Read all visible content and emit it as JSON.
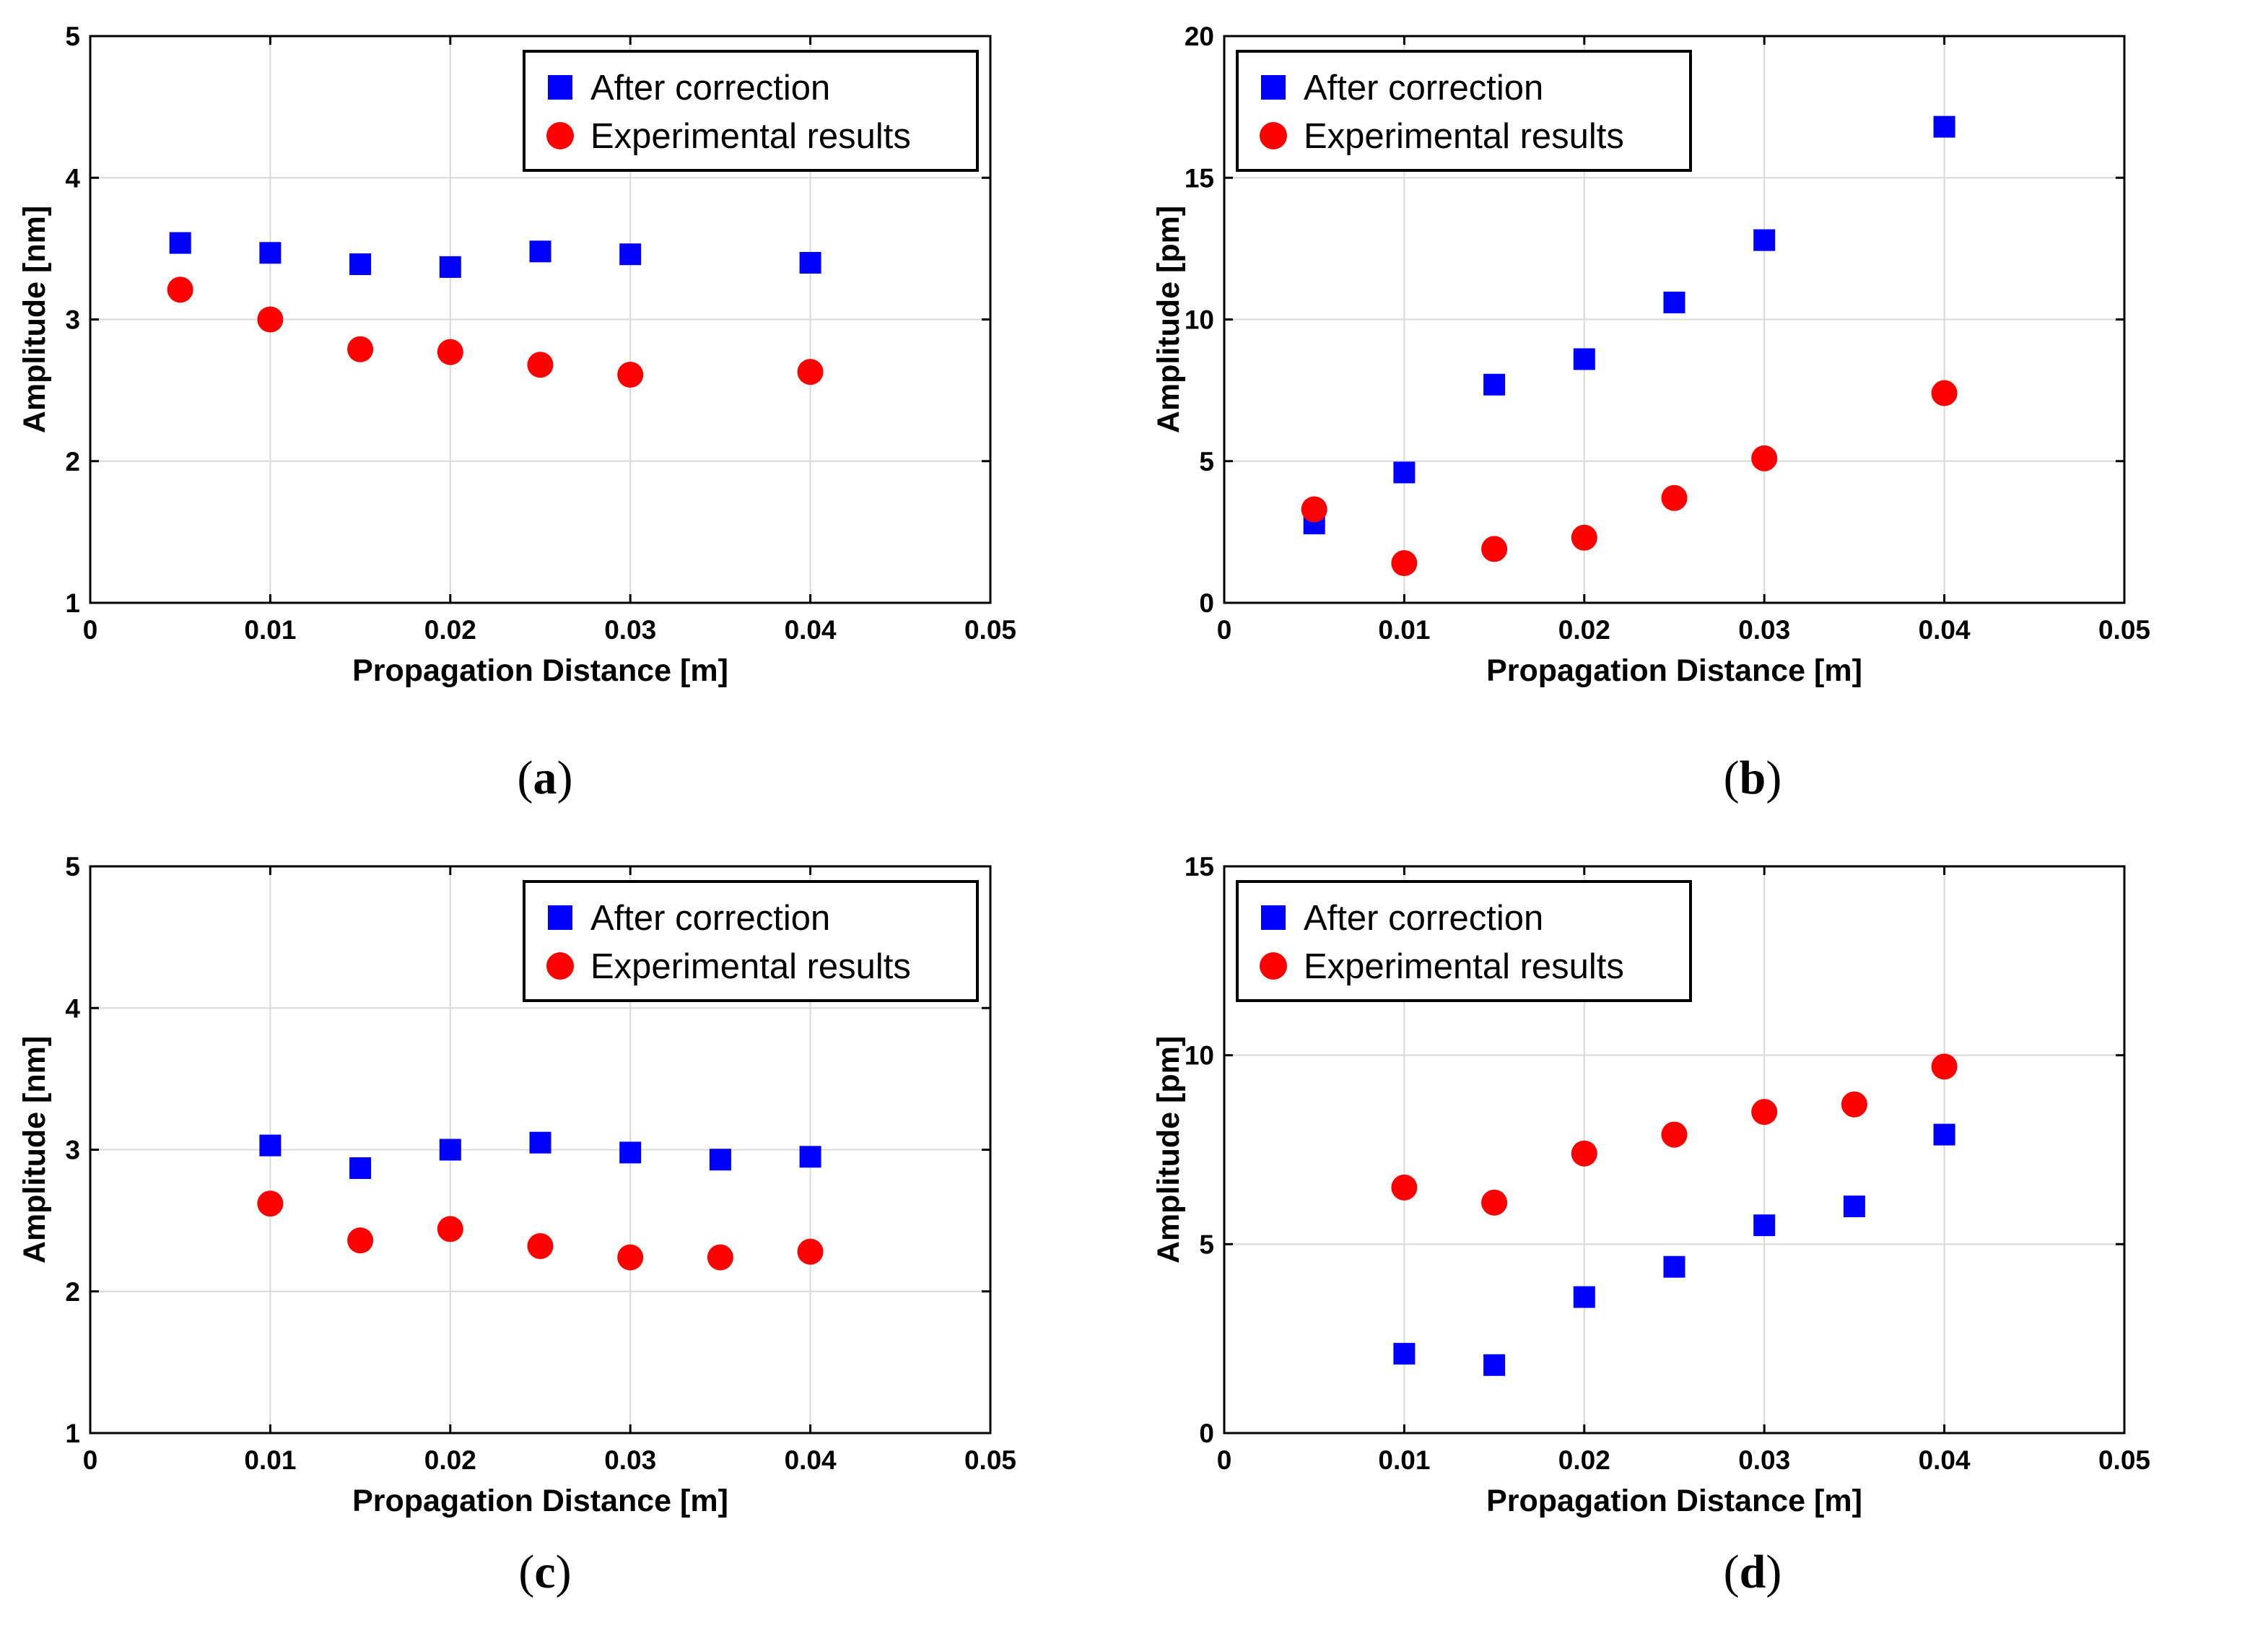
{
  "colors": {
    "series_after": "#0000ff",
    "series_experimental": "#ff0000",
    "grid": "#d9d9d9",
    "axis": "#000000"
  },
  "chart_data": [
    {
      "id": "a",
      "type": "scatter",
      "caption": "a",
      "xlabel": "Propagation Distance [m]",
      "ylabel": "Amplitude [nm]",
      "xlim": [
        0,
        0.05
      ],
      "ylim": [
        1,
        5
      ],
      "xticks": [
        "0",
        "0.01",
        "0.02",
        "0.03",
        "0.04",
        "0.05"
      ],
      "xtick_values": [
        0,
        0.01,
        0.02,
        0.03,
        0.04,
        0.05
      ],
      "yticks": [
        "1",
        "2",
        "3",
        "4",
        "5"
      ],
      "ytick_values": [
        1,
        2,
        3,
        4,
        5
      ],
      "grid": true,
      "legend_position": "top-right",
      "series": [
        {
          "name": "After correction",
          "marker": "square",
          "color": "#0000ff",
          "x": [
            0.005,
            0.01,
            0.015,
            0.02,
            0.025,
            0.03,
            0.04
          ],
          "y": [
            3.54,
            3.47,
            3.39,
            3.37,
            3.48,
            3.46,
            3.4
          ]
        },
        {
          "name": "Experimental results",
          "marker": "circle",
          "color": "#ff0000",
          "x": [
            0.005,
            0.01,
            0.015,
            0.02,
            0.025,
            0.03,
            0.04
          ],
          "y": [
            3.21,
            3.0,
            2.79,
            2.77,
            2.68,
            2.61,
            2.63
          ]
        }
      ]
    },
    {
      "id": "b",
      "type": "scatter",
      "caption": "b",
      "xlabel": "Propagation Distance [m]",
      "ylabel": "Amplitude [pm]",
      "xlim": [
        0,
        0.05
      ],
      "ylim": [
        0,
        20
      ],
      "xticks": [
        "0",
        "0.01",
        "0.02",
        "0.03",
        "0.04",
        "0.05"
      ],
      "xtick_values": [
        0,
        0.01,
        0.02,
        0.03,
        0.04,
        0.05
      ],
      "yticks": [
        "0",
        "5",
        "10",
        "15",
        "20"
      ],
      "ytick_values": [
        0,
        5,
        10,
        15,
        20
      ],
      "grid": true,
      "legend_position": "top-left",
      "series": [
        {
          "name": "After correction",
          "marker": "square",
          "color": "#0000ff",
          "x": [
            0.005,
            0.01,
            0.015,
            0.02,
            0.025,
            0.03,
            0.04
          ],
          "y": [
            2.8,
            4.6,
            7.7,
            8.6,
            10.6,
            12.8,
            16.8
          ]
        },
        {
          "name": "Experimental results",
          "marker": "circle",
          "color": "#ff0000",
          "x": [
            0.005,
            0.01,
            0.015,
            0.02,
            0.025,
            0.03,
            0.04
          ],
          "y": [
            3.3,
            1.4,
            1.9,
            2.3,
            3.7,
            5.1,
            7.4
          ]
        }
      ]
    },
    {
      "id": "c",
      "type": "scatter",
      "caption": "c",
      "xlabel": "Propagation Distance [m]",
      "ylabel": "Amplitude [nm]",
      "xlim": [
        0,
        0.05
      ],
      "ylim": [
        1,
        5
      ],
      "xticks": [
        "0",
        "0.01",
        "0.02",
        "0.03",
        "0.04",
        "0.05"
      ],
      "xtick_values": [
        0,
        0.01,
        0.02,
        0.03,
        0.04,
        0.05
      ],
      "yticks": [
        "1",
        "2",
        "3",
        "4",
        "5"
      ],
      "ytick_values": [
        1,
        2,
        3,
        4,
        5
      ],
      "grid": true,
      "legend_position": "top-right",
      "series": [
        {
          "name": "After correction",
          "marker": "square",
          "color": "#0000ff",
          "x": [
            0.01,
            0.015,
            0.02,
            0.025,
            0.03,
            0.035,
            0.04
          ],
          "y": [
            3.03,
            2.87,
            3.0,
            3.05,
            2.98,
            2.93,
            2.95
          ]
        },
        {
          "name": "Experimental results",
          "marker": "circle",
          "color": "#ff0000",
          "x": [
            0.01,
            0.015,
            0.02,
            0.025,
            0.03,
            0.035,
            0.04
          ],
          "y": [
            2.62,
            2.36,
            2.44,
            2.32,
            2.24,
            2.24,
            2.28
          ]
        }
      ]
    },
    {
      "id": "d",
      "type": "scatter",
      "caption": "d",
      "xlabel": "Propagation Distance [m]",
      "ylabel": "Amplitude [pm]",
      "xlim": [
        0,
        0.05
      ],
      "ylim": [
        0,
        15
      ],
      "xticks": [
        "0",
        "0.01",
        "0.02",
        "0.03",
        "0.04",
        "0.05"
      ],
      "xtick_values": [
        0,
        0.01,
        0.02,
        0.03,
        0.04,
        0.05
      ],
      "yticks": [
        "0",
        "5",
        "10",
        "15"
      ],
      "ytick_values": [
        0,
        5,
        10,
        15
      ],
      "grid": true,
      "legend_position": "top-left",
      "series": [
        {
          "name": "After correction",
          "marker": "square",
          "color": "#0000ff",
          "x": [
            0.01,
            0.015,
            0.02,
            0.025,
            0.03,
            0.035,
            0.04
          ],
          "y": [
            2.1,
            1.8,
            3.6,
            4.4,
            5.5,
            6.0,
            7.9
          ]
        },
        {
          "name": "Experimental results",
          "marker": "circle",
          "color": "#ff0000",
          "x": [
            0.01,
            0.015,
            0.02,
            0.025,
            0.03,
            0.035,
            0.04
          ],
          "y": [
            6.5,
            6.1,
            7.4,
            7.9,
            8.5,
            8.7,
            9.7
          ]
        }
      ]
    }
  ]
}
